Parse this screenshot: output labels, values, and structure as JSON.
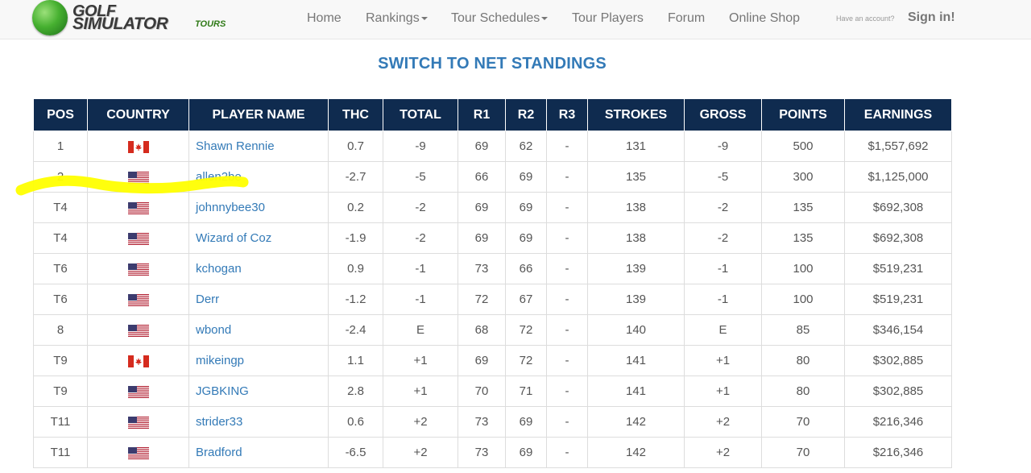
{
  "brand": {
    "line1": "GOLF",
    "line2": "SIMULATOR",
    "tag": "TOURS"
  },
  "nav": {
    "home": "Home",
    "rankings": "Rankings",
    "tour_schedules": "Tour Schedules",
    "tour_players": "Tour Players",
    "forum": "Forum",
    "online_shop": "Online Shop",
    "account_question": "Have an account?",
    "sign_in": "Sign in!"
  },
  "page": {
    "switch_link": "SWITCH TO NET STANDINGS"
  },
  "table": {
    "headers": [
      "POS",
      "COUNTRY",
      "PLAYER NAME",
      "THC",
      "TOTAL",
      "R1",
      "R2",
      "R3",
      "STROKES",
      "GROSS",
      "POINTS",
      "EARNINGS"
    ],
    "rows": [
      {
        "pos": "1",
        "country": "ca",
        "player": "Shawn Rennie",
        "thc": "0.7",
        "total": "-9",
        "r1": "69",
        "r2": "62",
        "r3": "-",
        "strokes": "131",
        "gross": "-9",
        "points": "500",
        "earnings": "$1,557,692"
      },
      {
        "pos": "2",
        "country": "us",
        "player": "allen2be",
        "thc": "-2.7",
        "total": "-5",
        "r1": "66",
        "r2": "69",
        "r3": "-",
        "strokes": "135",
        "gross": "-5",
        "points": "300",
        "earnings": "$1,125,000"
      },
      {
        "pos": "T4",
        "country": "us",
        "player": "johnnybee30",
        "thc": "0.2",
        "total": "-2",
        "r1": "69",
        "r2": "69",
        "r3": "-",
        "strokes": "138",
        "gross": "-2",
        "points": "135",
        "earnings": "$692,308"
      },
      {
        "pos": "T4",
        "country": "us",
        "player": "Wizard of Coz",
        "thc": "-1.9",
        "total": "-2",
        "r1": "69",
        "r2": "69",
        "r3": "-",
        "strokes": "138",
        "gross": "-2",
        "points": "135",
        "earnings": "$692,308"
      },
      {
        "pos": "T6",
        "country": "us",
        "player": "kchogan",
        "thc": "0.9",
        "total": "-1",
        "r1": "73",
        "r2": "66",
        "r3": "-",
        "strokes": "139",
        "gross": "-1",
        "points": "100",
        "earnings": "$519,231"
      },
      {
        "pos": "T6",
        "country": "us",
        "player": "Derr",
        "thc": "-1.2",
        "total": "-1",
        "r1": "72",
        "r2": "67",
        "r3": "-",
        "strokes": "139",
        "gross": "-1",
        "points": "100",
        "earnings": "$519,231"
      },
      {
        "pos": "8",
        "country": "us",
        "player": "wbond",
        "thc": "-2.4",
        "total": "E",
        "r1": "68",
        "r2": "72",
        "r3": "-",
        "strokes": "140",
        "gross": "E",
        "points": "85",
        "earnings": "$346,154"
      },
      {
        "pos": "T9",
        "country": "ca",
        "player": "mikeingp",
        "thc": "1.1",
        "total": "+1",
        "r1": "69",
        "r2": "72",
        "r3": "-",
        "strokes": "141",
        "gross": "+1",
        "points": "80",
        "earnings": "$302,885"
      },
      {
        "pos": "T9",
        "country": "us",
        "player": "JGBKING",
        "thc": "2.8",
        "total": "+1",
        "r1": "70",
        "r2": "71",
        "r3": "-",
        "strokes": "141",
        "gross": "+1",
        "points": "80",
        "earnings": "$302,885"
      },
      {
        "pos": "T11",
        "country": "us",
        "player": "strider33",
        "thc": "0.6",
        "total": "+2",
        "r1": "73",
        "r2": "69",
        "r3": "-",
        "strokes": "142",
        "gross": "+2",
        "points": "70",
        "earnings": "$216,346"
      },
      {
        "pos": "T11",
        "country": "us",
        "player": "Bradford",
        "thc": "-6.5",
        "total": "+2",
        "r1": "73",
        "r2": "69",
        "r3": "-",
        "strokes": "142",
        "gross": "+2",
        "points": "70",
        "earnings": "$216,346"
      }
    ]
  },
  "colors": {
    "header_bg": "#0f2b4f",
    "link": "#337ab7",
    "highlight": "#ffff00"
  },
  "icons": {
    "ca": "canada-flag-icon",
    "us": "usa-flag-icon"
  }
}
